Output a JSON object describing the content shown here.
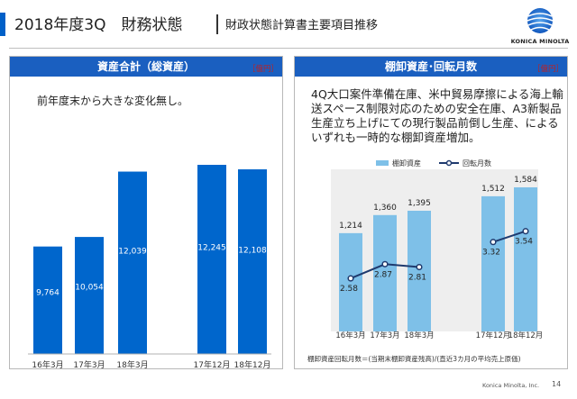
{
  "header": {
    "title": "2018年度3Q　財務状態",
    "subtitle": "財政状態計算書主要項目推移",
    "logo_text": "KONICA MINOLTA"
  },
  "colors": {
    "accent": "#0060c8",
    "panel_header": "#1a5fc0",
    "bar_left": "#0066cc",
    "bar_right": "#7ec0e8",
    "line": "#1f3a6e",
    "unit_red": "#c02020"
  },
  "left_panel": {
    "title": "資産合計（総資産）",
    "unit": "［億円］",
    "note": "前年度末から大きな変化無し。"
  },
  "right_panel": {
    "title": "棚卸資産･回転月数",
    "unit": "［億円］",
    "note": "4Q大口案件準備在庫、米中貿易摩擦による海上輸送スペース制限対応のための安全在庫、A3新製品生産立ち上げにての現行製品前倒し生産、によるいずれも一時的な棚卸資産増加。",
    "formula": "棚卸資産回転月数＝(当期末棚卸資産残高)/(直近3カ月の平均売上原価)"
  },
  "chart_data": [
    {
      "type": "bar",
      "categories": [
        "16年3月",
        "17年3月",
        "18年3月",
        "17年12月",
        "18年12月"
      ],
      "values": [
        9764,
        10054,
        12039,
        12245,
        12108
      ],
      "data_labels": [
        "9,764",
        "10,054",
        "12,039",
        "12,245",
        "12,108"
      ],
      "title": "資産合計（総資産）",
      "ylabel": "",
      "xlabel": ""
    },
    {
      "type": "bar",
      "categories": [
        "16年3月",
        "17年3月",
        "18年3月",
        "17年12月",
        "18年12月"
      ],
      "series": [
        {
          "name": "棚卸資産",
          "type": "bar",
          "values": [
            1214,
            1360,
            1395,
            1512,
            1584
          ],
          "data_labels": [
            "1,214",
            "1,360",
            "1,395",
            "1,512",
            "1,584"
          ]
        },
        {
          "name": "回転月数",
          "type": "line",
          "values": [
            2.58,
            2.87,
            2.81,
            3.32,
            3.54
          ],
          "data_labels": [
            "2.58",
            "2.87",
            "2.81",
            "3.32",
            "3.54"
          ]
        }
      ],
      "legend": "top-center",
      "title": "棚卸資産･回転月数"
    }
  ],
  "footer": {
    "company": "Konica Minolta, Inc.",
    "page": "14"
  }
}
